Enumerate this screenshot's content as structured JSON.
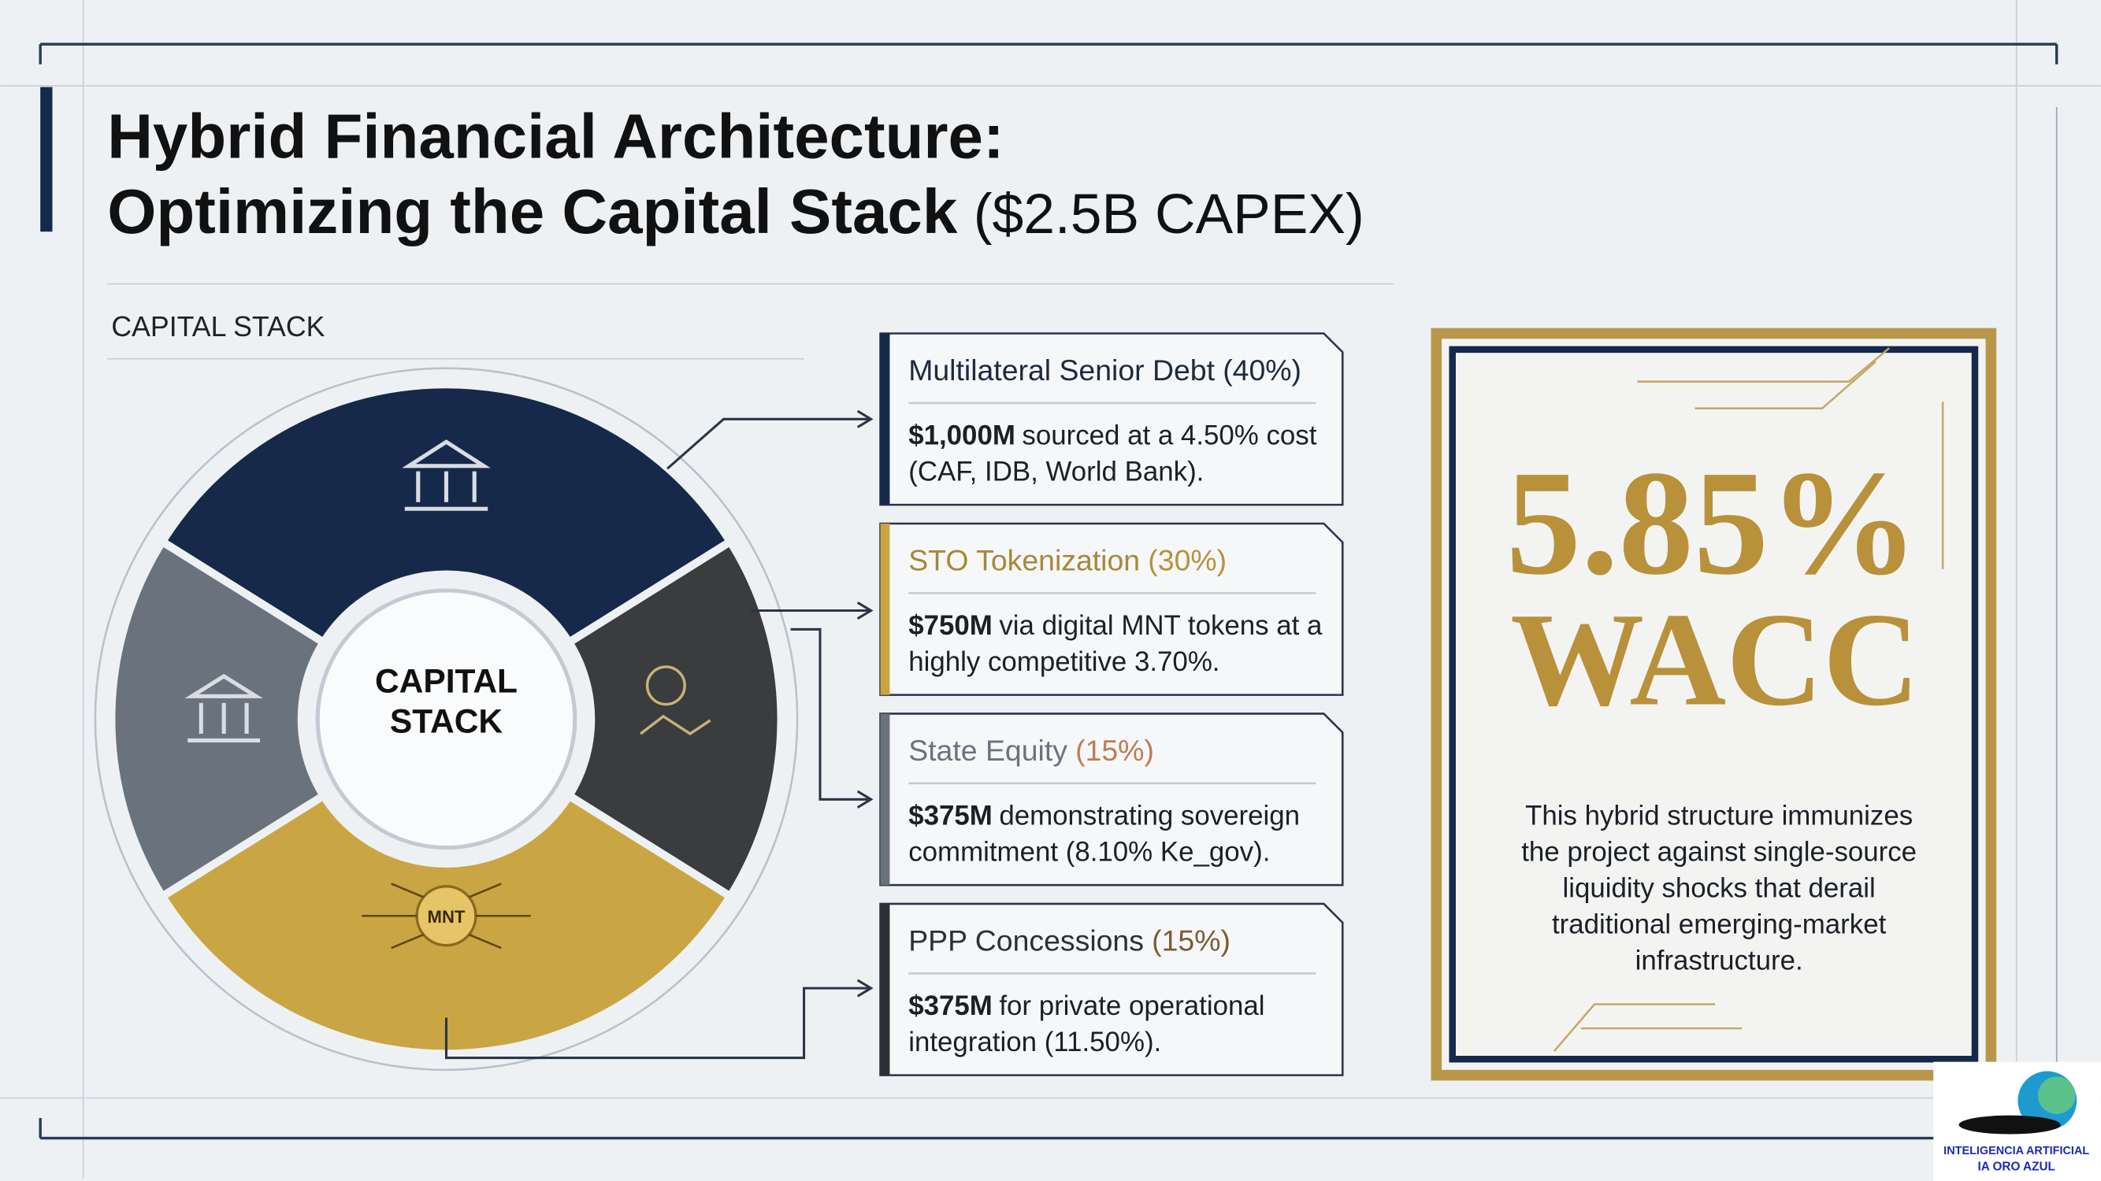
{
  "header": {
    "title_line1": "Hybrid Financial Architecture:",
    "title_line2": "Optimizing the Capital Stack",
    "title_suffix": "($2.5B CAPEX)"
  },
  "diagram": {
    "label": "CAPITAL STACK",
    "center": [
      "CAPITAL",
      "STACK"
    ],
    "token_label": "MNT"
  },
  "cards": [
    {
      "name": "Multilateral Senior Debt",
      "share": "(40%)",
      "amount": "$1,000M",
      "line1": "sourced at a 4.50% cost",
      "line2": "(CAF, IDB, World Bank)."
    },
    {
      "name": "STO Tokenization",
      "share": "(30%)",
      "amount": "$750M",
      "line1": "via digital MNT tokens at a",
      "line2": "highly competitive 3.70%."
    },
    {
      "name": "State Equity",
      "share": "(15%)",
      "amount": "$375M",
      "line1": "demonstrating sovereign",
      "line2": "commitment (8.10% Ke_gov)."
    },
    {
      "name": "PPP Concessions",
      "share": "(15%)",
      "amount": "$375M",
      "line1": "for private operational",
      "line2": "integration (11.50%)."
    }
  ],
  "wacc": {
    "value": "5.85%",
    "label": "WACC",
    "description": [
      "This hybrid structure immunizes",
      "the project against single-source",
      "liquidity shocks that derail",
      "traditional emerging-market",
      "infrastructure."
    ]
  },
  "logo": [
    "INTELIGENCIA ARTIFICIAL",
    "IA ORO AZUL"
  ]
}
